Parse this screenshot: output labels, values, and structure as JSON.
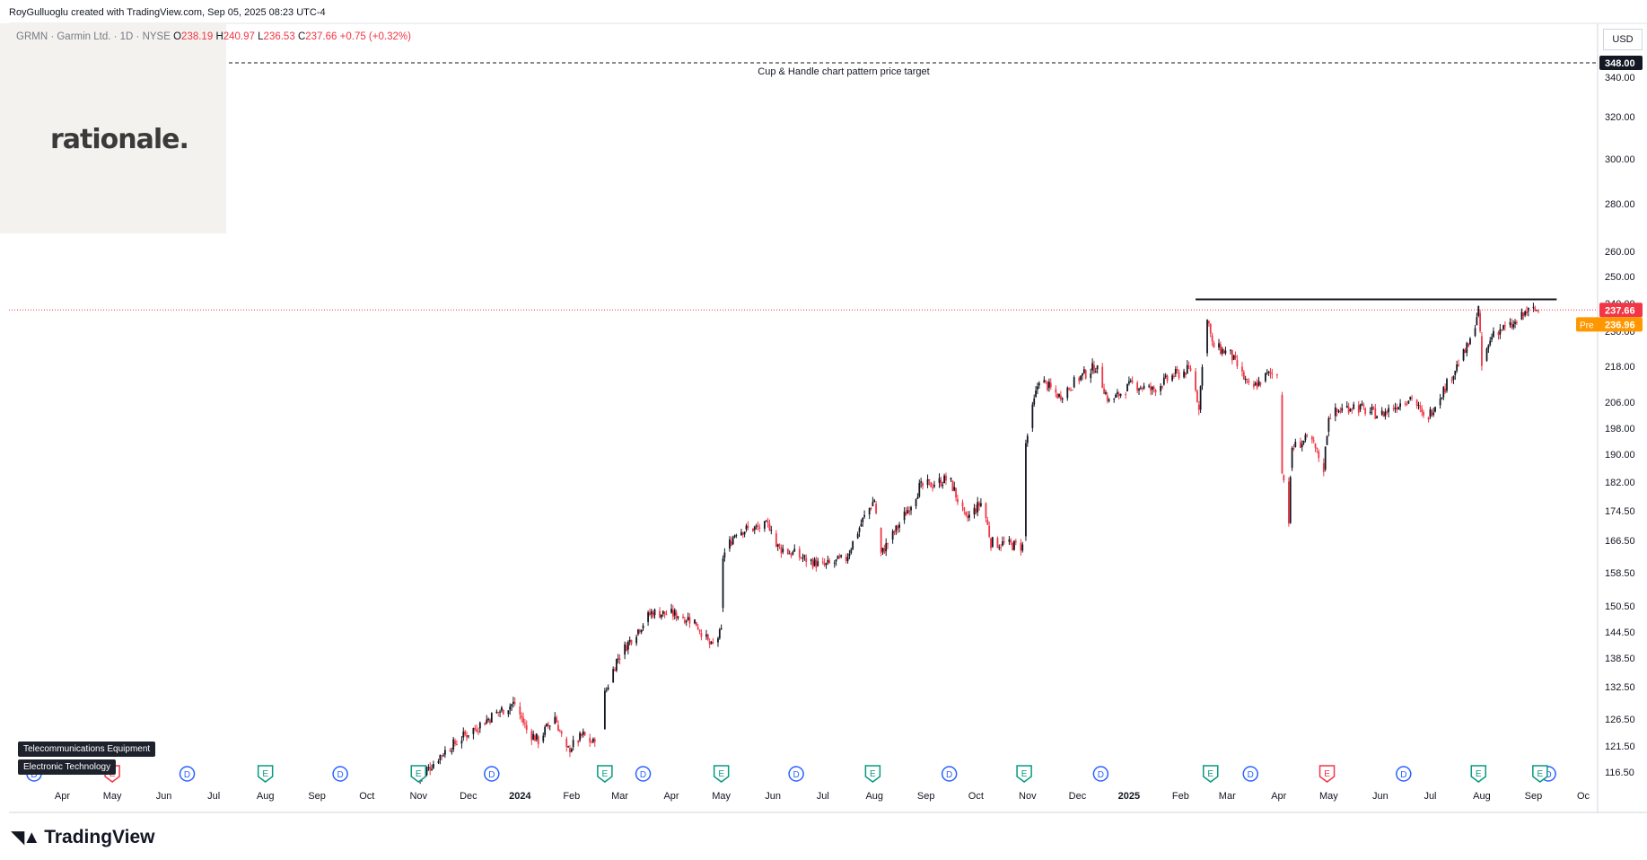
{
  "header": {
    "attribution": "RoyGulluoglu created with TradingView.com, Sep 05, 2025 08:23 UTC-4",
    "symbol": "GRMN · Garmin Ltd. · 1D · NYSE",
    "open_label": "O",
    "open": "238.19",
    "high_label": "H",
    "high": "240.97",
    "low_label": "L",
    "low": "236.53",
    "close_label": "C",
    "close": "237.66",
    "change": "+0.75 (+0.32%)"
  },
  "logo": {
    "text": "rationale."
  },
  "currency": "USD",
  "sectors": [
    "Telecommunications Equipment",
    "Electronic Technology"
  ],
  "footer": {
    "brand": "TradingView"
  },
  "colors": {
    "up": "#131722",
    "down": "#f23645",
    "dividend": "#2962ff",
    "earnings": "#089981",
    "earnings_bad": "#f23645",
    "pre": "#ff9800"
  },
  "chart_data": {
    "type": "candlestick",
    "ylim": [
      114,
      352
    ],
    "y_ticks": [
      116.5,
      121.5,
      126.5,
      132.5,
      138.5,
      144.5,
      150.5,
      158.5,
      166.5,
      174.5,
      182.0,
      190.0,
      198.0,
      206.0,
      218.0,
      230.0,
      240.0,
      250.0,
      260.0,
      280.0,
      300.0,
      320.0,
      340.0
    ],
    "y_tick_labels": [
      "116.50",
      "121.50",
      "126.50",
      "132.50",
      "138.50",
      "144.50",
      "150.50",
      "158.50",
      "166.50",
      "174.50",
      "182.00",
      "190.00",
      "198.00",
      "206.00",
      "218.00",
      "230.00",
      "240.00",
      "250.00",
      "260.00",
      "280.00",
      "300.00",
      "320.00",
      "340.00"
    ],
    "x_labels": [
      "Apr",
      "May",
      "Jun",
      "Jul",
      "Aug",
      "Sep",
      "Oct",
      "Nov",
      "Dec",
      "2024",
      "Feb",
      "Mar",
      "Apr",
      "May",
      "Jun",
      "Jul",
      "Aug",
      "Sep",
      "Oct",
      "Nov",
      "Dec",
      "2025",
      "Feb",
      "Mar",
      "Apr",
      "May",
      "Jun",
      "Jul",
      "Aug",
      "Sep",
      "Oc"
    ],
    "target": {
      "price": 348.0,
      "label": "348.00",
      "annotation": "Cup & Handle chart pattern price target"
    },
    "resistance": {
      "price": 241.5
    },
    "last_price": {
      "price": 237.66,
      "label": "237.66"
    },
    "pre_market": {
      "price": 236.96,
      "label": "236.96",
      "tag": "Pre"
    },
    "price_path": [
      [
        "2023-11-01",
        115.0
      ],
      [
        "2023-11-15",
        120.0
      ],
      [
        "2023-12-01",
        124.0
      ],
      [
        "2023-12-20",
        128.0
      ],
      [
        "2023-12-29",
        129.5
      ],
      [
        "2024-01-05",
        124.5
      ],
      [
        "2024-01-12",
        122.5
      ],
      [
        "2024-01-22",
        127.0
      ],
      [
        "2024-01-29",
        120.5
      ],
      [
        "2024-02-08",
        123.5
      ],
      [
        "2024-02-14",
        122.0
      ],
      [
        "2024-02-21",
        131.0
      ],
      [
        "2024-02-28",
        138.0
      ],
      [
        "2024-03-08",
        143.0
      ],
      [
        "2024-03-20",
        149.0
      ],
      [
        "2024-04-05",
        148.5
      ],
      [
        "2024-04-15",
        147.0
      ],
      [
        "2024-04-25",
        141.0
      ],
      [
        "2024-05-01",
        144.5
      ],
      [
        "2024-05-02",
        162.5
      ],
      [
        "2024-05-10",
        169.0
      ],
      [
        "2024-05-31",
        170.5
      ],
      [
        "2024-06-03",
        165.0
      ],
      [
        "2024-06-20",
        162.0
      ],
      [
        "2024-07-01",
        160.0
      ],
      [
        "2024-07-15",
        162.0
      ],
      [
        "2024-07-25",
        172.0
      ],
      [
        "2024-08-01",
        177.5
      ],
      [
        "2024-08-05",
        163.0
      ],
      [
        "2024-08-15",
        170.0
      ],
      [
        "2024-08-28",
        180.5
      ],
      [
        "2024-09-15",
        183.0
      ],
      [
        "2024-09-25",
        172.0
      ],
      [
        "2024-10-05",
        177.0
      ],
      [
        "2024-10-10",
        166.0
      ],
      [
        "2024-10-20",
        165.5
      ],
      [
        "2024-10-29",
        165.0
      ],
      [
        "2024-10-30",
        190.5
      ],
      [
        "2024-11-08",
        214.0
      ],
      [
        "2024-11-20",
        208.0
      ],
      [
        "2024-12-02",
        214.0
      ],
      [
        "2024-12-12",
        218.0
      ],
      [
        "2024-12-20",
        206.0
      ],
      [
        "2025-01-03",
        212.0
      ],
      [
        "2025-01-15",
        210.0
      ],
      [
        "2025-01-28",
        215.0
      ],
      [
        "2025-02-07",
        217.0
      ],
      [
        "2025-02-12",
        205.0
      ],
      [
        "2025-02-17",
        236.0
      ],
      [
        "2025-02-20",
        225.0
      ],
      [
        "2025-03-03",
        222.0
      ],
      [
        "2025-03-15",
        210.0
      ],
      [
        "2025-03-25",
        215.0
      ],
      [
        "2025-03-31",
        216.0
      ],
      [
        "2025-04-03",
        186.0
      ],
      [
        "2025-04-07",
        172.0
      ],
      [
        "2025-04-09",
        192.0
      ],
      [
        "2025-04-20",
        195.0
      ],
      [
        "2025-04-28",
        186.0
      ],
      [
        "2025-05-01",
        202.0
      ],
      [
        "2025-05-15",
        205.0
      ],
      [
        "2025-06-01",
        202.0
      ],
      [
        "2025-06-20",
        208.0
      ],
      [
        "2025-06-28",
        200.0
      ],
      [
        "2025-07-10",
        211.0
      ],
      [
        "2025-07-25",
        226.0
      ],
      [
        "2025-07-30",
        238.0
      ],
      [
        "2025-08-01",
        218.0
      ],
      [
        "2025-08-08",
        230.0
      ],
      [
        "2025-08-20",
        232.0
      ],
      [
        "2025-08-28",
        237.0
      ],
      [
        "2025-09-04",
        237.66
      ]
    ],
    "dividend_markers": [
      "2023-03-15",
      "2023-06-15",
      "2023-09-15",
      "2023-12-15",
      "2024-03-15",
      "2024-06-15",
      "2024-09-15",
      "2024-12-15",
      "2025-03-15",
      "2025-06-15",
      "2025-09-10"
    ],
    "earnings_markers": [
      "2023-05-01",
      "2023-08-01",
      "2023-11-01",
      "2024-02-21",
      "2024-05-01",
      "2024-07-31",
      "2024-10-30",
      "2025-02-19",
      "2025-04-30",
      "2025-07-30",
      "2025-09-05"
    ],
    "event_letters": {
      "dividend": "D",
      "earnings": "E"
    }
  }
}
